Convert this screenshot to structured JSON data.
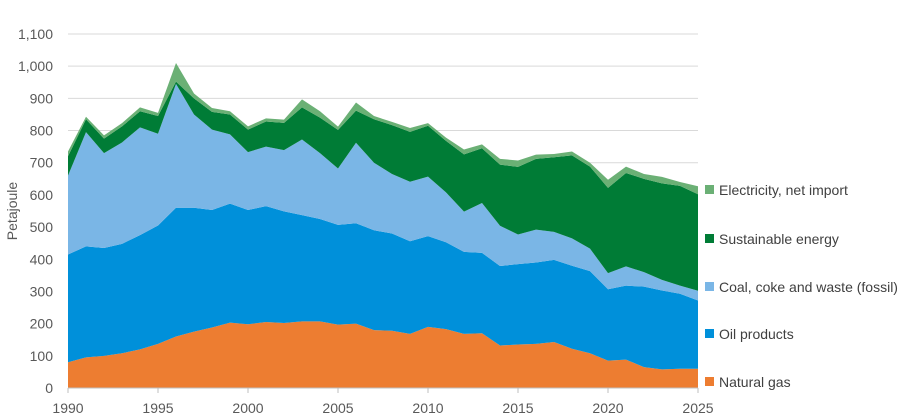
{
  "chart_data": {
    "type": "area",
    "stacked": true,
    "title": "",
    "xlabel": "",
    "ylabel": "Petajoule",
    "xlim": [
      1990,
      2025
    ],
    "ylim": [
      0,
      1100
    ],
    "x_ticks": [
      1990,
      1995,
      2000,
      2005,
      2010,
      2015,
      2020,
      2025
    ],
    "y_ticks": [
      0,
      100,
      200,
      300,
      400,
      500,
      600,
      700,
      800,
      900,
      1000,
      1100
    ],
    "y_tick_labels": [
      "0",
      "100",
      "200",
      "300",
      "400",
      "500",
      "600",
      "700",
      "800",
      "900",
      "1,000",
      "1,100"
    ],
    "grid": "horizontal",
    "legend_position": "right",
    "x": [
      1990,
      1991,
      1992,
      1993,
      1994,
      1995,
      1996,
      1997,
      1998,
      1999,
      2000,
      2001,
      2002,
      2003,
      2004,
      2005,
      2006,
      2007,
      2008,
      2009,
      2010,
      2011,
      2012,
      2013,
      2014,
      2015,
      2016,
      2017,
      2018,
      2019,
      2020,
      2021,
      2022,
      2023,
      2024,
      2025
    ],
    "series": [
      {
        "name": "Natural gas",
        "color": "#ED7D31",
        "values": [
          80,
          95,
          100,
          108,
          120,
          137,
          160,
          175,
          188,
          203,
          198,
          205,
          202,
          207,
          207,
          197,
          200,
          180,
          178,
          168,
          190,
          183,
          168,
          170,
          132,
          135,
          137,
          143,
          122,
          108,
          85,
          88,
          65,
          58,
          60,
          60
        ]
      },
      {
        "name": "Oil products",
        "color": "#0090DA",
        "values": [
          335,
          345,
          335,
          340,
          355,
          368,
          400,
          385,
          365,
          370,
          355,
          360,
          347,
          330,
          318,
          310,
          312,
          310,
          302,
          288,
          282,
          270,
          255,
          250,
          247,
          250,
          253,
          255,
          258,
          255,
          222,
          230,
          250,
          245,
          233,
          212
        ]
      },
      {
        "name": "Coal, coke and waste (fossil)",
        "color": "#7AB6E6",
        "values": [
          245,
          355,
          295,
          315,
          335,
          285,
          385,
          290,
          250,
          215,
          180,
          185,
          190,
          235,
          205,
          175,
          250,
          210,
          185,
          185,
          185,
          155,
          125,
          155,
          125,
          92,
          102,
          87,
          85,
          70,
          50,
          60,
          45,
          33,
          25,
          30
        ]
      },
      {
        "name": "Sustainable energy",
        "color": "#007C36",
        "values": [
          60,
          40,
          45,
          50,
          50,
          55,
          7,
          50,
          55,
          62,
          70,
          78,
          85,
          100,
          110,
          120,
          100,
          135,
          152,
          155,
          158,
          160,
          178,
          170,
          190,
          210,
          220,
          232,
          258,
          255,
          265,
          290,
          290,
          300,
          310,
          300
        ]
      },
      {
        "name": "Electricity, net import",
        "color": "#6BB075",
        "values": [
          15,
          8,
          10,
          10,
          12,
          10,
          58,
          15,
          12,
          10,
          10,
          10,
          10,
          25,
          20,
          10,
          25,
          10,
          10,
          12,
          8,
          10,
          15,
          12,
          18,
          20,
          13,
          10,
          12,
          12,
          25,
          20,
          15,
          20,
          12,
          25
        ]
      }
    ],
    "legend_order": [
      "Electricity, net import",
      "Sustainable energy",
      "Coal, coke and waste (fossil)",
      "Oil products",
      "Natural gas"
    ]
  }
}
